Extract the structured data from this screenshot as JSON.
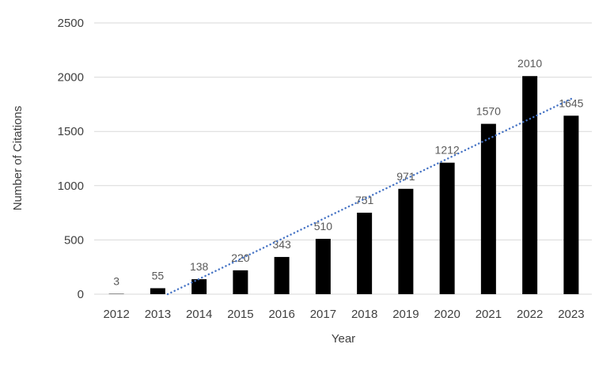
{
  "chart_data": {
    "type": "bar",
    "title": "",
    "categories": [
      "2012",
      "2013",
      "2014",
      "2015",
      "2016",
      "2017",
      "2018",
      "2019",
      "2020",
      "2021",
      "2022",
      "2023"
    ],
    "values": [
      3,
      55,
      138,
      220,
      343,
      510,
      751,
      971,
      1212,
      1570,
      2010,
      1645
    ],
    "xlabel": "Year",
    "ylabel": "Number of Citations",
    "ylim": [
      0,
      2500
    ],
    "yticks": [
      0,
      500,
      1000,
      1500,
      2000,
      2500
    ],
    "grid": true,
    "legend": "none",
    "data_labels": true,
    "colors": {
      "bar": "#000000",
      "data_label": "#595959",
      "axis_text": "#404040",
      "gridline": "#d9d9d9",
      "trendline": "#4472c4",
      "background": "#ffffff"
    },
    "trendline": {
      "type": "linear",
      "style": "dotted",
      "clipped_at_zero": true
    }
  }
}
